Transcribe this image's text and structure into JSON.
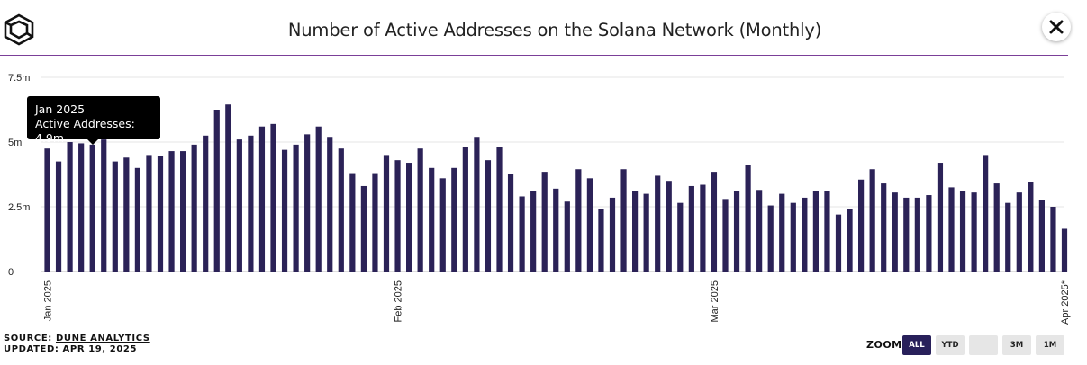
{
  "header": {
    "title": "Number of Active Addresses on the Solana Network (Monthly)",
    "close_label": "✕"
  },
  "tooltip": {
    "date": "Jan 2025",
    "text": "Active Addresses: 4.9m"
  },
  "footer": {
    "source_prefix": "SOURCE:",
    "source_name": "DUNE ANALYTICS",
    "updated": "UPDATED: APR 19, 2025"
  },
  "zoom": {
    "label": "ZOOM",
    "buttons": [
      {
        "label": "ALL",
        "active": true
      },
      {
        "label": "YTD",
        "active": false
      },
      {
        "label": "",
        "active": false
      },
      {
        "label": "3M",
        "active": false
      },
      {
        "label": "1M",
        "active": false
      }
    ]
  },
  "colors": {
    "bar": "#2b2257",
    "accent": "#7b3f98",
    "grid": "#e6e6e6"
  },
  "chart_data": {
    "type": "bar",
    "title": "Number of Active Addresses on the Solana Network (Monthly)",
    "ylim": [
      0,
      7.5
    ],
    "y_unit": "m",
    "yticks": [
      {
        "value": 0,
        "label": "0"
      },
      {
        "value": 2.5,
        "label": "2.5m"
      },
      {
        "value": 5,
        "label": "5m"
      },
      {
        "value": 7.5,
        "label": "7.5m"
      }
    ],
    "xticks": [
      {
        "index": 0,
        "label": "Jan 2025"
      },
      {
        "index": 31,
        "label": "Feb 2025"
      },
      {
        "index": 59,
        "label": "Mar 2025"
      },
      {
        "index": 90,
        "label": "Apr 2025*"
      }
    ],
    "grid": true,
    "series": [
      {
        "values": [
          4.75,
          4.25,
          5.0,
          4.95,
          4.9,
          5.1,
          4.25,
          4.4,
          4.0,
          4.5,
          4.45,
          4.65,
          4.65,
          4.9,
          5.25,
          6.25,
          6.45,
          5.1,
          5.25,
          5.6,
          5.7,
          4.7,
          4.9,
          5.3,
          5.6,
          5.2,
          4.75,
          3.8,
          3.3,
          3.8,
          4.5,
          4.3,
          4.2,
          4.75,
          4.0,
          3.6,
          4.0,
          4.8,
          5.2,
          4.3,
          4.8,
          3.75,
          2.9,
          3.1,
          3.85,
          3.2,
          2.7,
          3.95,
          3.6,
          2.4,
          2.85,
          3.95,
          3.1,
          3.0,
          3.7,
          3.5,
          2.65,
          3.3,
          3.35,
          3.85,
          2.8,
          3.1,
          4.1,
          3.15,
          2.55,
          3.0,
          2.65,
          2.85,
          3.1,
          3.1,
          2.2,
          2.4,
          3.55,
          3.95,
          3.4,
          3.05,
          2.85,
          2.85,
          2.95,
          4.2,
          3.25,
          3.1,
          3.05,
          4.5,
          3.4,
          2.65,
          3.05,
          3.45,
          2.75,
          2.5,
          1.65
        ]
      }
    ]
  }
}
